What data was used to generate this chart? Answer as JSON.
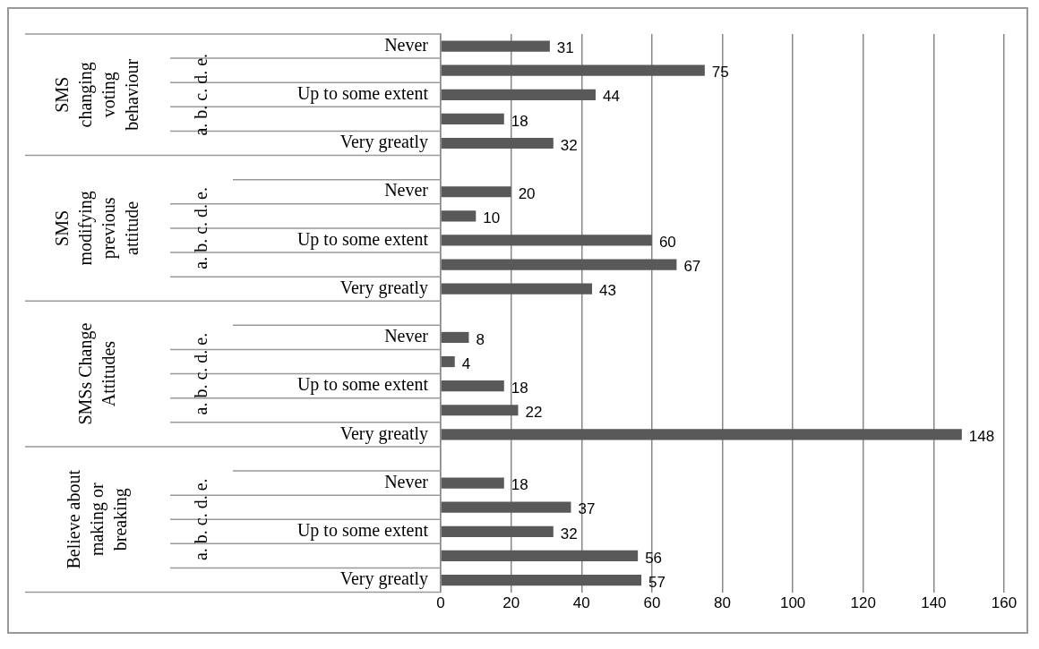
{
  "chart_data": {
    "type": "bar",
    "orientation": "horizontal",
    "categories": [
      "Never",
      null,
      "Up to some extent",
      null,
      "Very greatly",
      null,
      "Never",
      null,
      "Up to some extent",
      null,
      "Very greatly",
      null,
      "Never",
      null,
      "Up to some extent",
      null,
      "Very greatly",
      null,
      "Never",
      null,
      "Up to some extent",
      null,
      "Very greatly"
    ],
    "values": [
      31,
      75,
      44,
      18,
      32,
      null,
      20,
      10,
      60,
      67,
      43,
      null,
      8,
      4,
      18,
      22,
      148,
      null,
      18,
      37,
      32,
      56,
      57
    ],
    "color": "#595959",
    "xlim": [
      0,
      160
    ],
    "xticks": [
      0,
      20,
      40,
      60,
      80,
      100,
      120,
      140,
      160
    ],
    "grid": "x",
    "data_labels": true,
    "annotations": [
      "SMS changing voting behaviour",
      "SMS modifying previous attitude",
      "SMSs Change Attitudes",
      "Believe about making or breaking",
      "a. b. c. d. e.",
      "a. b. c. d. e.",
      "a. b. c. d. e.",
      "a. b. c. d. e."
    ]
  }
}
